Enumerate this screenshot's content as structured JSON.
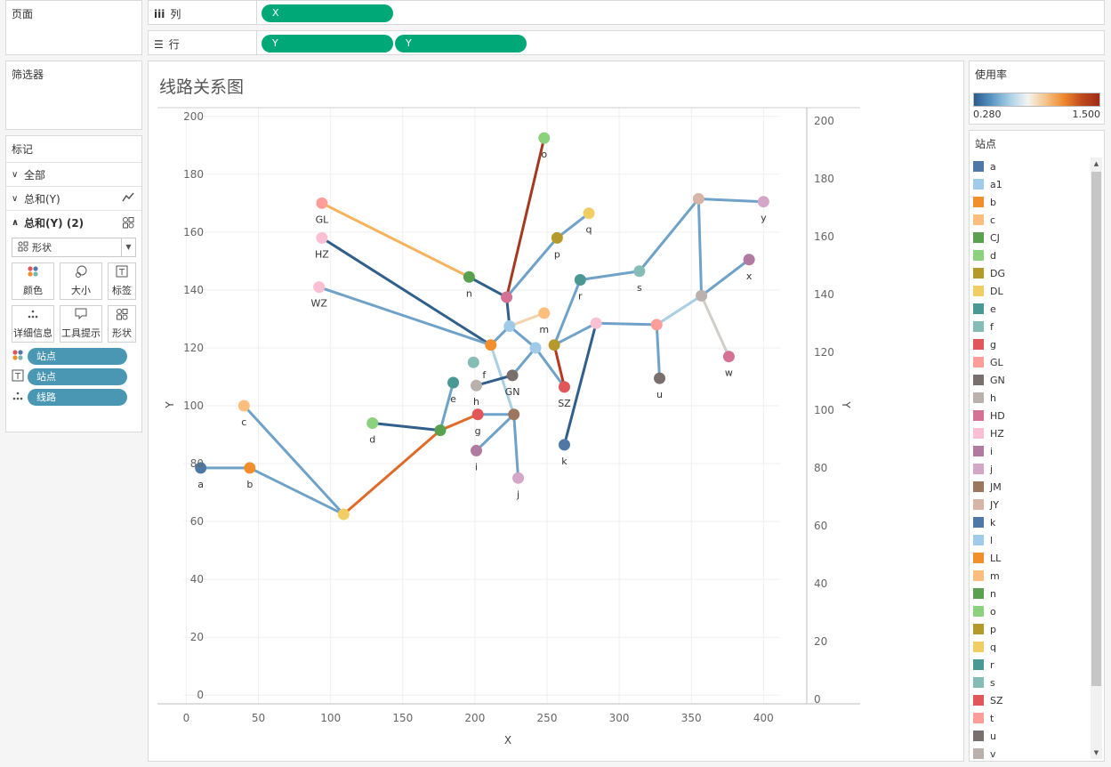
{
  "pages_title": "页面",
  "filters_title": "筛选器",
  "marks": {
    "title": "标记",
    "rows": [
      {
        "label": "全部"
      },
      {
        "label": "总和(Y)"
      },
      {
        "label": "总和(Y) (2)"
      }
    ],
    "mark_type": "形状",
    "buttons": [
      "颜色",
      "大小",
      "标签",
      "详细信息",
      "工具提示",
      "形状"
    ],
    "pills": [
      "站点",
      "站点",
      "线路"
    ]
  },
  "shelves": {
    "columns_label": "列",
    "rows_label": "行",
    "column_pills": [
      "X"
    ],
    "row_pills": [
      "Y",
      "Y"
    ]
  },
  "viz": {
    "title": "线路关系图"
  },
  "color_legend": {
    "title": "使用率",
    "min": "0.280",
    "max": "1.500"
  },
  "station_legend": {
    "title": "站点",
    "items": [
      {
        "name": "a",
        "color": "#4e79a7"
      },
      {
        "name": "a1",
        "color": "#a0cbe8"
      },
      {
        "name": "b",
        "color": "#f28e2b"
      },
      {
        "name": "c",
        "color": "#ffbe7d"
      },
      {
        "name": "CJ",
        "color": "#59a14f"
      },
      {
        "name": "d",
        "color": "#8cd17d"
      },
      {
        "name": "DG",
        "color": "#b6992d"
      },
      {
        "name": "DL",
        "color": "#f1ce63"
      },
      {
        "name": "e",
        "color": "#499894"
      },
      {
        "name": "f",
        "color": "#86bcb6"
      },
      {
        "name": "g",
        "color": "#e15759"
      },
      {
        "name": "GL",
        "color": "#ff9d9a"
      },
      {
        "name": "GN",
        "color": "#79706e"
      },
      {
        "name": "h",
        "color": "#bab0ac"
      },
      {
        "name": "HD",
        "color": "#d37295"
      },
      {
        "name": "HZ",
        "color": "#fabfd2"
      },
      {
        "name": "i",
        "color": "#b07aa1"
      },
      {
        "name": "j",
        "color": "#d4a6c8"
      },
      {
        "name": "JM",
        "color": "#9d7660"
      },
      {
        "name": "JY",
        "color": "#d7b5a6"
      },
      {
        "name": "k",
        "color": "#4e79a7"
      },
      {
        "name": "l",
        "color": "#a0cbe8"
      },
      {
        "name": "LL",
        "color": "#f28e2b"
      },
      {
        "name": "m",
        "color": "#ffbe7d"
      },
      {
        "name": "n",
        "color": "#59a14f"
      },
      {
        "name": "o",
        "color": "#8cd17d"
      },
      {
        "name": "p",
        "color": "#b6992d"
      },
      {
        "name": "q",
        "color": "#f1ce63"
      },
      {
        "name": "r",
        "color": "#499894"
      },
      {
        "name": "s",
        "color": "#86bcb6"
      },
      {
        "name": "SZ",
        "color": "#e15759"
      },
      {
        "name": "t",
        "color": "#ff9d9a"
      },
      {
        "name": "u",
        "color": "#79706e"
      },
      {
        "name": "v",
        "color": "#bab0ac"
      }
    ]
  },
  "chart_data": {
    "type": "scatter",
    "xlabel": "X",
    "ylabel": "Y",
    "xlim": [
      -20,
      430
    ],
    "ylim": [
      -3,
      203
    ],
    "x_ticks": [
      0,
      50,
      100,
      150,
      200,
      250,
      300,
      350,
      400
    ],
    "y_ticks": [
      0,
      20,
      40,
      60,
      80,
      100,
      120,
      140,
      160,
      180,
      200
    ],
    "points": [
      {
        "id": "a",
        "label": "a",
        "x": 10,
        "y": 78.5,
        "color": "#4e79a7",
        "lp": "below"
      },
      {
        "id": "b",
        "label": "b",
        "x": 44,
        "y": 78.5,
        "color": "#f28e2b",
        "lp": "below"
      },
      {
        "id": "c",
        "label": "c",
        "x": 40,
        "y": 100,
        "color": "#ffbe7d",
        "lp": "below"
      },
      {
        "id": "DL",
        "label": "",
        "x": 109,
        "y": 62.5,
        "color": "#f1ce63",
        "lp": "none"
      },
      {
        "id": "d",
        "label": "d",
        "x": 129,
        "y": 94,
        "color": "#8cd17d",
        "lp": "below"
      },
      {
        "id": "CJ",
        "label": "",
        "x": 176,
        "y": 91.5,
        "color": "#59a14f",
        "lp": "none"
      },
      {
        "id": "e",
        "label": "e",
        "x": 185,
        "y": 108,
        "color": "#499894",
        "lp": "below"
      },
      {
        "id": "h",
        "label": "h",
        "x": 201,
        "y": 107,
        "color": "#bab0ac",
        "lp": "below"
      },
      {
        "id": "g",
        "label": "g",
        "x": 202,
        "y": 97,
        "color": "#e15759",
        "lp": "below"
      },
      {
        "id": "i",
        "label": "i",
        "x": 201,
        "y": 84.5,
        "color": "#b07aa1",
        "lp": "below"
      },
      {
        "id": "JM",
        "label": "",
        "x": 227,
        "y": 97,
        "color": "#9d7660",
        "lp": "none"
      },
      {
        "id": "j",
        "label": "j",
        "x": 230,
        "y": 75,
        "color": "#d4a6c8",
        "lp": "below"
      },
      {
        "id": "f",
        "label": "f",
        "x": 199,
        "y": 115,
        "color": "#86bcb6",
        "lp": "belowright"
      },
      {
        "id": "LL",
        "label": "",
        "x": 211,
        "y": 121,
        "color": "#f28e2b",
        "lp": "none"
      },
      {
        "id": "GN",
        "label": "GN",
        "x": 226,
        "y": 110.5,
        "color": "#79706e",
        "lp": "below"
      },
      {
        "id": "l",
        "label": "",
        "x": 224,
        "y": 127.5,
        "color": "#a0cbe8",
        "lp": "none"
      },
      {
        "id": "a1",
        "label": "",
        "x": 242,
        "y": 120,
        "color": "#a0cbe8",
        "lp": "none"
      },
      {
        "id": "DG",
        "label": "",
        "x": 255,
        "y": 121,
        "color": "#b6992d",
        "lp": "none"
      },
      {
        "id": "SZ",
        "label": "SZ",
        "x": 262,
        "y": 106.5,
        "color": "#e15759",
        "lp": "below"
      },
      {
        "id": "k",
        "label": "k",
        "x": 262,
        "y": 86.5,
        "color": "#4e79a7",
        "lp": "below"
      },
      {
        "id": "HD",
        "label": "",
        "x": 222,
        "y": 137.5,
        "color": "#d37295",
        "lp": "none"
      },
      {
        "id": "m",
        "label": "m",
        "x": 248,
        "y": 132,
        "color": "#ffbe7d",
        "lp": "below"
      },
      {
        "id": "n",
        "label": "n",
        "x": 196,
        "y": 144.5,
        "color": "#59a14f",
        "lp": "below"
      },
      {
        "id": "o",
        "label": "o",
        "x": 248,
        "y": 192.5,
        "color": "#8cd17d",
        "lp": "below"
      },
      {
        "id": "p",
        "label": "p",
        "x": 257,
        "y": 158,
        "color": "#b6992d",
        "lp": "below"
      },
      {
        "id": "q",
        "label": "q",
        "x": 279,
        "y": 166.5,
        "color": "#f1ce63",
        "lp": "below"
      },
      {
        "id": "r",
        "label": "r",
        "x": 273,
        "y": 143.5,
        "color": "#499894",
        "lp": "below"
      },
      {
        "id": "s",
        "label": "s",
        "x": 314,
        "y": 146.5,
        "color": "#86bcb6",
        "lp": "below"
      },
      {
        "id": "t1",
        "label": "",
        "x": 284,
        "y": 128.5,
        "color": "#fabfd2",
        "lp": "none"
      },
      {
        "id": "t",
        "label": "",
        "x": 326,
        "y": 128,
        "color": "#ff9d9a",
        "lp": "none"
      },
      {
        "id": "u",
        "label": "u",
        "x": 328,
        "y": 109.5,
        "color": "#79706e",
        "lp": "below"
      },
      {
        "id": "v",
        "label": "",
        "x": 357,
        "y": 138,
        "color": "#bab0ac",
        "lp": "none"
      },
      {
        "id": "JY",
        "label": "",
        "x": 355,
        "y": 171.5,
        "color": "#d7b5a6",
        "lp": "none"
      },
      {
        "id": "y",
        "label": "y",
        "x": 400,
        "y": 170.5,
        "color": "#d4a6c8",
        "lp": "below"
      },
      {
        "id": "x",
        "label": "x",
        "x": 390,
        "y": 150.5,
        "color": "#b07aa1",
        "lp": "below"
      },
      {
        "id": "w",
        "label": "w",
        "x": 376,
        "y": 117,
        "color": "#d37295",
        "lp": "below"
      },
      {
        "id": "GL",
        "label": "GL",
        "x": 94,
        "y": 170,
        "color": "#ff9d9a",
        "lp": "below"
      },
      {
        "id": "HZ",
        "label": "HZ",
        "x": 94,
        "y": 158,
        "color": "#fabfd2",
        "lp": "below"
      },
      {
        "id": "WZ",
        "label": "WZ",
        "x": 92,
        "y": 141,
        "color": "#fabfd2",
        "lp": "below"
      }
    ],
    "routes": [
      {
        "from": "a",
        "to": "b",
        "color": "#6fa2c9"
      },
      {
        "from": "b",
        "to": "DL",
        "color": "#6fa2c9"
      },
      {
        "from": "c",
        "to": "DL",
        "color": "#6fa2c9"
      },
      {
        "from": "DL",
        "to": "CJ",
        "color": "#e06b29"
      },
      {
        "from": "CJ",
        "to": "g",
        "color": "#e06b29"
      },
      {
        "from": "d",
        "to": "CJ",
        "color": "#2f5f8a"
      },
      {
        "from": "CJ",
        "to": "e",
        "color": "#6fa2c9"
      },
      {
        "from": "g",
        "to": "JM",
        "color": "#6fa2c9"
      },
      {
        "from": "i",
        "to": "JM",
        "color": "#6fa2c9"
      },
      {
        "from": "JM",
        "to": "j",
        "color": "#6fa2c9"
      },
      {
        "from": "JM",
        "to": "LL",
        "color": "#a9cfe3"
      },
      {
        "from": "h",
        "to": "GN",
        "color": "#2f5f8a"
      },
      {
        "from": "GN",
        "to": "a1",
        "color": "#6fa2c9"
      },
      {
        "from": "LL",
        "to": "l",
        "color": "#6fa2c9"
      },
      {
        "from": "l",
        "to": "HD",
        "color": "#2f5f8a"
      },
      {
        "from": "l",
        "to": "a1",
        "color": "#6fa2c9"
      },
      {
        "from": "a1",
        "to": "SZ",
        "color": "#6fa2c9"
      },
      {
        "from": "l",
        "to": "m",
        "color": "#f1d3ae"
      },
      {
        "from": "HD",
        "to": "p",
        "color": "#6fa2c9"
      },
      {
        "from": "p",
        "to": "q",
        "color": "#6fa2c9"
      },
      {
        "from": "HD",
        "to": "o",
        "color": "#a13a20"
      },
      {
        "from": "n",
        "to": "HD",
        "color": "#2f5f8a"
      },
      {
        "from": "GL",
        "to": "n",
        "color": "#f6b25c"
      },
      {
        "from": "HZ",
        "to": "LL",
        "color": "#2f5f8a"
      },
      {
        "from": "WZ",
        "to": "LL",
        "color": "#6fa2c9"
      },
      {
        "from": "DG",
        "to": "SZ",
        "color": "#b8371f"
      },
      {
        "from": "DG",
        "to": "r",
        "color": "#6fa2c9"
      },
      {
        "from": "r",
        "to": "s",
        "color": "#6fa2c9"
      },
      {
        "from": "s",
        "to": "JY",
        "color": "#6fa2c9"
      },
      {
        "from": "JY",
        "to": "y",
        "color": "#6fa2c9"
      },
      {
        "from": "JY",
        "to": "v",
        "color": "#6fa2c9"
      },
      {
        "from": "v",
        "to": "x",
        "color": "#6fa2c9"
      },
      {
        "from": "v",
        "to": "w",
        "color": "#d1cdc8"
      },
      {
        "from": "v",
        "to": "t",
        "color": "#a9cfe3"
      },
      {
        "from": "t",
        "to": "u",
        "color": "#6fa2c9"
      },
      {
        "from": "t",
        "to": "t1",
        "color": "#6fa2c9"
      },
      {
        "from": "t1",
        "to": "DG",
        "color": "#6fa2c9"
      },
      {
        "from": "t1",
        "to": "k",
        "color": "#2f5f8a"
      }
    ]
  }
}
